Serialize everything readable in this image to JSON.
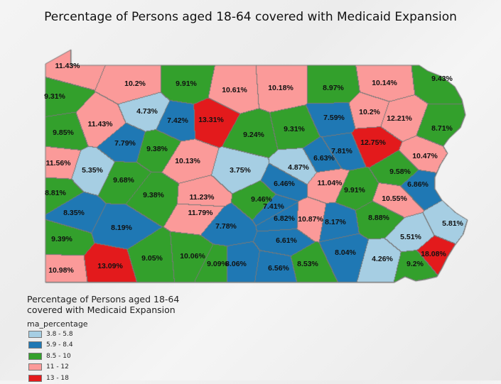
{
  "title": "Percentage of Persons aged 18-64 covered with Medicaid Expansion",
  "legend": {
    "title": "Percentage of Persons aged 18-64 covered with Medicaid Expansion",
    "field": "ma_percentage",
    "classes": [
      {
        "label": "3.8 - 5.8",
        "color": "#a6cee3"
      },
      {
        "label": "5.9 - 8.4",
        "color": "#1f78b4"
      },
      {
        "label": "8.5 - 10",
        "color": "#33a02c"
      },
      {
        "label": "11 - 12",
        "color": "#fb9a99"
      },
      {
        "label": "13 - 18",
        "color": "#e31a1c"
      }
    ]
  },
  "counties": [
    {
      "label": "11.43%",
      "cls": 3
    },
    {
      "label": "10.2%",
      "cls": 3
    },
    {
      "label": "9.91%",
      "cls": 2
    },
    {
      "label": "10.61%",
      "cls": 3
    },
    {
      "label": "10.18%",
      "cls": 3
    },
    {
      "label": "8.97%",
      "cls": 2
    },
    {
      "label": "10.14%",
      "cls": 3
    },
    {
      "label": "9.43%",
      "cls": 2
    },
    {
      "label": "9.31%",
      "cls": 2
    },
    {
      "label": "4.73%",
      "cls": 0
    },
    {
      "label": "7.42%",
      "cls": 1
    },
    {
      "label": "13.31%",
      "cls": 4
    },
    {
      "label": "7.59%",
      "cls": 1
    },
    {
      "label": "10.2%",
      "cls": 3
    },
    {
      "label": "12.21%",
      "cls": 3
    },
    {
      "label": "8.71%",
      "cls": 2
    },
    {
      "label": "11.43%",
      "cls": 3
    },
    {
      "label": "9.85%",
      "cls": 2
    },
    {
      "label": "9.24%",
      "cls": 2
    },
    {
      "label": "9.31%",
      "cls": 2
    },
    {
      "label": "7.79%",
      "cls": 1
    },
    {
      "label": "9.38%",
      "cls": 2
    },
    {
      "label": "12.75%",
      "cls": 4
    },
    {
      "label": "7.81%",
      "cls": 1
    },
    {
      "label": "10.47%",
      "cls": 3
    },
    {
      "label": "11.56%",
      "cls": 3
    },
    {
      "label": "5.35%",
      "cls": 0
    },
    {
      "label": "10.13%",
      "cls": 3
    },
    {
      "label": "3.75%",
      "cls": 0
    },
    {
      "label": "4.87%",
      "cls": 0
    },
    {
      "label": "6.63%",
      "cls": 1
    },
    {
      "label": "9.58%",
      "cls": 2
    },
    {
      "label": "9.68%",
      "cls": 2
    },
    {
      "label": "6.86%",
      "cls": 1
    },
    {
      "label": "6.46%",
      "cls": 1
    },
    {
      "label": "11.04%",
      "cls": 3
    },
    {
      "label": "9.91%",
      "cls": 2
    },
    {
      "label": "9.38%",
      "cls": 2
    },
    {
      "label": "8.81%",
      "cls": 2
    },
    {
      "label": "11.23%",
      "cls": 3
    },
    {
      "label": "9.46%",
      "cls": 2
    },
    {
      "label": "10.55%",
      "cls": 3
    },
    {
      "label": "11.79%",
      "cls": 3
    },
    {
      "label": "7.41%",
      "cls": 1
    },
    {
      "label": "8.35%",
      "cls": 1
    },
    {
      "label": "7.78%",
      "cls": 1
    },
    {
      "label": "6.82%",
      "cls": 1
    },
    {
      "label": "10.87%",
      "cls": 3
    },
    {
      "label": "8.17%",
      "cls": 1
    },
    {
      "label": "8.88%",
      "cls": 2
    },
    {
      "label": "8.19%",
      "cls": 1
    },
    {
      "label": "5.81%",
      "cls": 0
    },
    {
      "label": "6.61%",
      "cls": 1
    },
    {
      "label": "5.51%",
      "cls": 0
    },
    {
      "label": "9.39%",
      "cls": 2
    },
    {
      "label": "10.06%",
      "cls": 2
    },
    {
      "label": "9.05%",
      "cls": 2
    },
    {
      "label": "9.09%",
      "cls": 2
    },
    {
      "label": "8.06%",
      "cls": 1
    },
    {
      "label": "8.53%",
      "cls": 2
    },
    {
      "label": "8.04%",
      "cls": 1
    },
    {
      "label": "4.26%",
      "cls": 0
    },
    {
      "label": "18.08%",
      "cls": 4
    },
    {
      "label": "13.09%",
      "cls": 4
    },
    {
      "label": "10.98%",
      "cls": 3
    },
    {
      "label": "6.56%",
      "cls": 1
    },
    {
      "label": "9.2%",
      "cls": 2
    }
  ]
}
